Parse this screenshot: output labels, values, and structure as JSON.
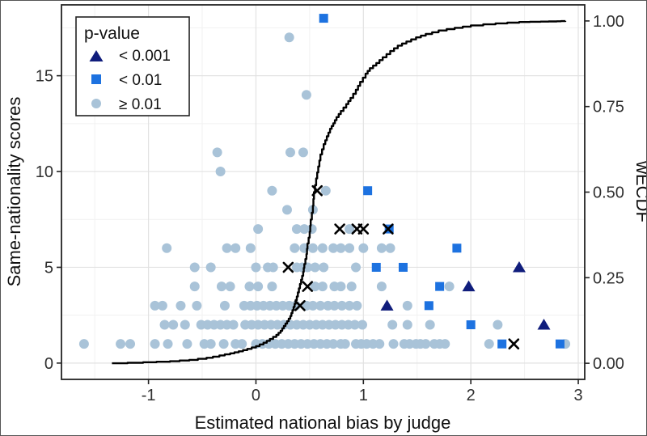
{
  "chart_data": {
    "type": "scatter",
    "title": "",
    "axes": {
      "x": {
        "title": "Estimated national bias by judge",
        "range": [
          -1.81,
          3.06
        ],
        "ticks": [
          -1,
          0,
          1,
          2,
          3
        ],
        "tick_labels": [
          "-1",
          "0",
          "1",
          "2",
          "3"
        ],
        "minor_ticks": [
          -1.5,
          -0.5,
          0.5,
          1.5,
          2.5
        ],
        "grid": true
      },
      "y_left": {
        "title": "Same-nationality scores",
        "range": [
          -0.85,
          18.7
        ],
        "ticks": [
          0,
          5,
          10,
          15
        ],
        "tick_labels": [
          "0",
          "5",
          "10",
          "15"
        ],
        "minor_ticks": [
          2.5,
          7.5,
          12.5,
          17.5
        ],
        "grid": true
      },
      "y_right": {
        "title": "wECDF",
        "range": [
          -0.047,
          1.047
        ],
        "ticks": [
          0,
          0.25,
          0.5,
          0.75,
          1.0
        ],
        "tick_labels": [
          "0.00",
          "0.25",
          "0.50",
          "0.75",
          "1.00"
        ]
      }
    },
    "legend": {
      "title": "p-value",
      "position": "top-left",
      "items": [
        {
          "label": "< 0.001",
          "symbol": "triangle",
          "color": "#101d7c"
        },
        {
          "label": "< 0.01",
          "symbol": "square",
          "color": "#1d72e0"
        },
        {
          "label": "≥ 0.01",
          "symbol": "circle",
          "color": "#a9c3d8"
        }
      ]
    },
    "series": [
      {
        "name": "p >= 0.01",
        "marker": "circle",
        "color": "#a9c3d8",
        "axis": "left",
        "points": [
          [
            0.31,
            17
          ],
          [
            0.47,
            14
          ],
          [
            -0.36,
            11
          ],
          [
            0.32,
            11
          ],
          [
            0.44,
            11
          ],
          [
            -0.33,
            10
          ],
          [
            0.15,
            9
          ],
          [
            0.65,
            9
          ],
          [
            0.29,
            8
          ],
          [
            0.53,
            8
          ],
          [
            0.02,
            7
          ],
          [
            0.38,
            7
          ],
          [
            0.45,
            7
          ],
          [
            0.52,
            7
          ],
          [
            0.87,
            7
          ],
          [
            -0.83,
            6
          ],
          [
            -0.27,
            6
          ],
          [
            -0.19,
            6
          ],
          [
            -0.05,
            6
          ],
          [
            0.36,
            6
          ],
          [
            0.45,
            6
          ],
          [
            0.53,
            6
          ],
          [
            0.62,
            6
          ],
          [
            0.72,
            6
          ],
          [
            0.79,
            6
          ],
          [
            0.87,
            6
          ],
          [
            1.0,
            6
          ],
          [
            1.17,
            6
          ],
          [
            1.25,
            6
          ],
          [
            -0.57,
            5
          ],
          [
            -0.42,
            5
          ],
          [
            0.0,
            5
          ],
          [
            0.11,
            5
          ],
          [
            0.16,
            5
          ],
          [
            0.38,
            5
          ],
          [
            0.43,
            5
          ],
          [
            0.48,
            5
          ],
          [
            0.55,
            5
          ],
          [
            0.63,
            5
          ],
          [
            0.93,
            5
          ],
          [
            -0.57,
            4
          ],
          [
            -0.32,
            4
          ],
          [
            -0.24,
            4
          ],
          [
            -0.06,
            4
          ],
          [
            0.02,
            4
          ],
          [
            0.15,
            4
          ],
          [
            0.55,
            4
          ],
          [
            0.62,
            4
          ],
          [
            0.73,
            4
          ],
          [
            0.79,
            4
          ],
          [
            0.89,
            4
          ],
          [
            1.17,
            4
          ],
          [
            1.8,
            4
          ],
          [
            -0.94,
            3
          ],
          [
            -0.87,
            3
          ],
          [
            -0.7,
            3
          ],
          [
            -0.55,
            3
          ],
          [
            -0.29,
            3
          ],
          [
            -0.11,
            3
          ],
          [
            -0.05,
            3
          ],
          [
            0.01,
            3
          ],
          [
            0.07,
            3
          ],
          [
            0.13,
            3
          ],
          [
            0.19,
            3
          ],
          [
            0.25,
            3
          ],
          [
            0.31,
            3
          ],
          [
            0.37,
            3
          ],
          [
            0.47,
            3
          ],
          [
            0.53,
            3
          ],
          [
            0.6,
            3
          ],
          [
            0.67,
            3
          ],
          [
            0.73,
            3
          ],
          [
            0.8,
            3
          ],
          [
            0.87,
            3
          ],
          [
            0.94,
            3
          ],
          [
            1.41,
            3
          ],
          [
            -0.85,
            2
          ],
          [
            -0.77,
            2
          ],
          [
            -0.66,
            2
          ],
          [
            -0.51,
            2
          ],
          [
            -0.45,
            2
          ],
          [
            -0.39,
            2
          ],
          [
            -0.33,
            2
          ],
          [
            -0.27,
            2
          ],
          [
            -0.21,
            2
          ],
          [
            -0.1,
            2
          ],
          [
            -0.04,
            2
          ],
          [
            0.02,
            2
          ],
          [
            0.08,
            2
          ],
          [
            0.14,
            2
          ],
          [
            0.2,
            2
          ],
          [
            0.26,
            2
          ],
          [
            0.32,
            2
          ],
          [
            0.38,
            2
          ],
          [
            0.44,
            2
          ],
          [
            0.5,
            2
          ],
          [
            0.56,
            2
          ],
          [
            0.62,
            2
          ],
          [
            0.68,
            2
          ],
          [
            0.74,
            2
          ],
          [
            0.8,
            2
          ],
          [
            0.86,
            2
          ],
          [
            0.92,
            2
          ],
          [
            0.99,
            2
          ],
          [
            1.27,
            2
          ],
          [
            1.41,
            2
          ],
          [
            1.62,
            2
          ],
          [
            2.25,
            2
          ],
          [
            -1.6,
            1
          ],
          [
            -1.26,
            1
          ],
          [
            -1.17,
            1
          ],
          [
            -0.94,
            1
          ],
          [
            -0.82,
            1
          ],
          [
            -0.64,
            1
          ],
          [
            -0.48,
            1
          ],
          [
            -0.42,
            1
          ],
          [
            -0.3,
            1
          ],
          [
            -0.19,
            1
          ],
          [
            -0.13,
            1
          ],
          [
            0.0,
            1
          ],
          [
            0.06,
            1
          ],
          [
            0.12,
            1
          ],
          [
            0.18,
            1
          ],
          [
            0.24,
            1
          ],
          [
            0.3,
            1
          ],
          [
            0.36,
            1
          ],
          [
            0.42,
            1
          ],
          [
            0.48,
            1
          ],
          [
            0.54,
            1
          ],
          [
            0.6,
            1
          ],
          [
            0.66,
            1
          ],
          [
            0.72,
            1
          ],
          [
            0.79,
            1
          ],
          [
            0.83,
            1
          ],
          [
            0.93,
            1
          ],
          [
            0.98,
            1
          ],
          [
            1.03,
            1
          ],
          [
            1.09,
            1
          ],
          [
            1.15,
            1
          ],
          [
            1.28,
            1
          ],
          [
            1.38,
            1
          ],
          [
            1.43,
            1
          ],
          [
            1.49,
            1
          ],
          [
            1.53,
            1
          ],
          [
            1.58,
            1
          ],
          [
            1.66,
            1
          ],
          [
            1.71,
            1
          ],
          [
            1.76,
            1
          ],
          [
            2.17,
            1
          ],
          [
            2.88,
            1
          ]
        ]
      },
      {
        "name": "p < 0.01",
        "marker": "square",
        "color": "#1d72e0",
        "axis": "left",
        "points": [
          [
            0.63,
            18
          ],
          [
            1.04,
            9
          ],
          [
            1.24,
            7
          ],
          [
            1.87,
            6
          ],
          [
            1.12,
            5
          ],
          [
            1.37,
            5
          ],
          [
            1.71,
            4
          ],
          [
            1.61,
            3
          ],
          [
            2.0,
            2
          ],
          [
            2.29,
            1
          ],
          [
            2.83,
            1
          ]
        ]
      },
      {
        "name": "p < 0.001",
        "marker": "triangle",
        "color": "#101d7c",
        "axis": "left",
        "points": [
          [
            1.22,
            3
          ],
          [
            1.98,
            4
          ],
          [
            2.45,
            5
          ],
          [
            2.68,
            2
          ]
        ]
      },
      {
        "name": "x-flagged",
        "marker": "x",
        "color": "#000000",
        "axis": "left",
        "points": [
          [
            0.57,
            9
          ],
          [
            0.78,
            7
          ],
          [
            0.94,
            7
          ],
          [
            1.0,
            7
          ],
          [
            1.23,
            7
          ],
          [
            0.3,
            5
          ],
          [
            0.48,
            4
          ],
          [
            0.41,
            3
          ],
          [
            2.4,
            1
          ]
        ]
      },
      {
        "name": "wECDF",
        "marker": "step-line",
        "color": "#000000",
        "axis": "right",
        "points": [
          [
            -1.34,
            0.0
          ],
          [
            -1.05,
            0.003
          ],
          [
            -0.8,
            0.006
          ],
          [
            -0.62,
            0.01
          ],
          [
            -0.46,
            0.016
          ],
          [
            -0.34,
            0.023
          ],
          [
            -0.24,
            0.029
          ],
          [
            -0.16,
            0.035
          ],
          [
            -0.08,
            0.042
          ],
          [
            0.0,
            0.05
          ],
          [
            0.07,
            0.06
          ],
          [
            0.13,
            0.071
          ],
          [
            0.19,
            0.083
          ],
          [
            0.23,
            0.095
          ],
          [
            0.26,
            0.109
          ],
          [
            0.29,
            0.123
          ],
          [
            0.32,
            0.138
          ],
          [
            0.34,
            0.155
          ],
          [
            0.36,
            0.174
          ],
          [
            0.38,
            0.195
          ],
          [
            0.4,
            0.219
          ],
          [
            0.42,
            0.244
          ],
          [
            0.44,
            0.267
          ],
          [
            0.45,
            0.29
          ],
          [
            0.47,
            0.319
          ],
          [
            0.48,
            0.35
          ],
          [
            0.5,
            0.384
          ],
          [
            0.51,
            0.42
          ],
          [
            0.53,
            0.46
          ],
          [
            0.54,
            0.5
          ],
          [
            0.56,
            0.54
          ],
          [
            0.58,
            0.575
          ],
          [
            0.6,
            0.61
          ],
          [
            0.63,
            0.64
          ],
          [
            0.66,
            0.663
          ],
          [
            0.69,
            0.685
          ],
          [
            0.72,
            0.701
          ],
          [
            0.75,
            0.719
          ],
          [
            0.79,
            0.737
          ],
          [
            0.84,
            0.757
          ],
          [
            0.88,
            0.775
          ],
          [
            0.93,
            0.799
          ],
          [
            0.97,
            0.822
          ],
          [
            1.02,
            0.846
          ],
          [
            1.06,
            0.862
          ],
          [
            1.12,
            0.877
          ],
          [
            1.18,
            0.894
          ],
          [
            1.25,
            0.912
          ],
          [
            1.32,
            0.928
          ],
          [
            1.4,
            0.94
          ],
          [
            1.49,
            0.952
          ],
          [
            1.58,
            0.962
          ],
          [
            1.7,
            0.972
          ],
          [
            1.85,
            0.98
          ],
          [
            2.0,
            0.987
          ],
          [
            2.23,
            0.993
          ],
          [
            2.45,
            0.997
          ],
          [
            2.65,
            0.998
          ],
          [
            2.8,
            0.999
          ],
          [
            2.88,
            1.0
          ]
        ]
      }
    ]
  }
}
